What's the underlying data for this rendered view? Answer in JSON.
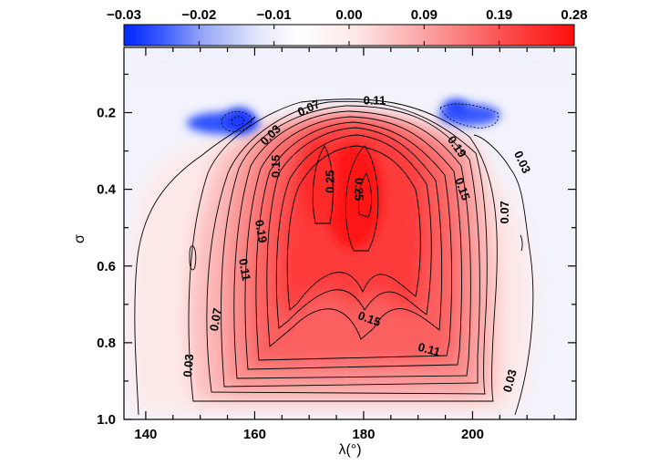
{
  "chart_data": {
    "type": "contour",
    "colorbar": {
      "ticks": [
        "−0.03",
        "−0.02",
        "−0.01",
        "0.00",
        "0.09",
        "0.19",
        "0.28"
      ],
      "min": -0.03,
      "max": 0.28,
      "colors": {
        "negative": "#0026ff",
        "zero": "#ffffff",
        "positive": "#ff0d0d"
      }
    },
    "xlabel": "λ(°)",
    "ylabel": "σ",
    "xlim": [
      136,
      219
    ],
    "ylim": [
      1.0,
      0.03
    ],
    "xticks": [
      "140",
      "160",
      "180",
      "200"
    ],
    "xtick_values": [
      140,
      160,
      180,
      200
    ],
    "yticks": [
      "0.2",
      "0.4",
      "0.6",
      "0.8",
      "1.0"
    ],
    "ytick_values": [
      0.2,
      0.4,
      0.6,
      0.8,
      1.0
    ],
    "max_value": 0.28,
    "max_location": {
      "lambda": 181,
      "sigma": 0.42
    },
    "min_locations": [
      {
        "lambda": 159,
        "sigma": 0.21,
        "value": -0.03
      },
      {
        "lambda": 196,
        "sigma": 0.19,
        "value": -0.02
      }
    ],
    "contour_interval": 0.02,
    "contour_labels": [
      {
        "text": "0.11",
        "lambda": 182,
        "sigma": 0.17,
        "rotate": 0
      },
      {
        "text": "0.07",
        "lambda": 170,
        "sigma": 0.19,
        "rotate": -25
      },
      {
        "text": "0.03",
        "lambda": 163,
        "sigma": 0.26,
        "rotate": -45
      },
      {
        "text": "0.19",
        "lambda": 197,
        "sigma": 0.29,
        "rotate": 55
      },
      {
        "text": "0.03",
        "lambda": 209,
        "sigma": 0.33,
        "rotate": 65
      },
      {
        "text": "0.15",
        "lambda": 164,
        "sigma": 0.34,
        "rotate": -90
      },
      {
        "text": "0.25",
        "lambda": 174,
        "sigma": 0.38,
        "rotate": -90
      },
      {
        "text": "0.25",
        "lambda": 179,
        "sigma": 0.4,
        "rotate": 90
      },
      {
        "text": "0.15",
        "lambda": 198,
        "sigma": 0.4,
        "rotate": 70
      },
      {
        "text": "0.07",
        "lambda": 206,
        "sigma": 0.46,
        "rotate": -90
      },
      {
        "text": "0.19",
        "lambda": 161,
        "sigma": 0.51,
        "rotate": 80
      },
      {
        "text": "0.11",
        "lambda": 158,
        "sigma": 0.61,
        "rotate": 80
      },
      {
        "text": "0.15",
        "lambda": 181,
        "sigma": 0.74,
        "rotate": 20
      },
      {
        "text": "0.07",
        "lambda": 153,
        "sigma": 0.74,
        "rotate": -80
      },
      {
        "text": "0.11",
        "lambda": 192,
        "sigma": 0.82,
        "rotate": 15
      },
      {
        "text": "0.03",
        "lambda": 148,
        "sigma": 0.86,
        "rotate": -85
      },
      {
        "text": "0.03",
        "lambda": 207,
        "sigma": 0.9,
        "rotate": -75
      }
    ]
  }
}
